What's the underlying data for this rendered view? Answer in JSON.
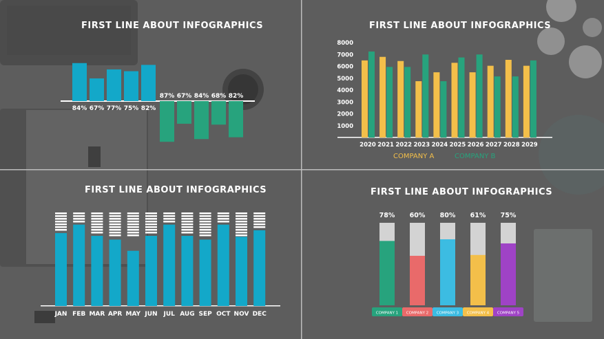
{
  "colors": {
    "background": "#5d5d5d",
    "teal": "#13a8c9",
    "green": "#27a37d",
    "yellow": "#f3bf4a",
    "divider": "#bdbdbd"
  },
  "panels": {
    "top_left": {
      "title": "FIRST LINE ABOUT INFOGRAPHICS"
    },
    "top_right": {
      "title": "FIRST LINE ABOUT INFOGRAPHICS"
    },
    "bottom_left": {
      "title": "FIRST LINE ABOUT INFOGRAPHICS"
    },
    "bottom_right": {
      "title": "FIRST LINE ABOUT INFOGRAPHICS"
    }
  },
  "chart_data": [
    {
      "type": "bar",
      "id": "diverging",
      "title": "FIRST LINE ABOUT INFOGRAPHICS",
      "series": [
        {
          "name": "",
          "direction": "up",
          "color": "#13a8c9",
          "values": [
            84,
            67,
            77,
            75,
            82
          ],
          "labels": [
            "84%",
            "67%",
            "77%",
            "75%",
            "82%"
          ]
        },
        {
          "name": "",
          "direction": "down",
          "color": "#27a37d",
          "values": [
            87,
            67,
            84,
            68,
            82
          ],
          "labels": [
            "87%",
            "67%",
            "84%",
            "68%",
            "82%"
          ]
        }
      ],
      "unit": "%"
    },
    {
      "type": "bar",
      "id": "grouped",
      "title": "FIRST LINE ABOUT INFOGRAPHICS",
      "categories": [
        "2020",
        "2021",
        "2022",
        "2023",
        "2024",
        "2025",
        "2026",
        "2027",
        "2028",
        "2029"
      ],
      "series": [
        {
          "name": "COMPANY A",
          "color": "#f3bf4a",
          "values": [
            6500,
            6800,
            6450,
            4750,
            5500,
            6300,
            5500,
            6050,
            6550,
            6050
          ]
        },
        {
          "name": "COMPANY B",
          "color": "#27a37d",
          "values": [
            7250,
            5950,
            5950,
            7000,
            4750,
            6750,
            7000,
            5150,
            5150,
            6500
          ]
        }
      ],
      "yticks": [
        "1000",
        "2000",
        "3000",
        "4000",
        "5000",
        "6000",
        "7000",
        "8000"
      ],
      "ylim": [
        0,
        8000
      ],
      "legend_position": "bottom"
    },
    {
      "type": "bar",
      "id": "monthly",
      "title": "FIRST LINE ABOUT INFOGRAPHICS",
      "categories": [
        "JAN",
        "FEB",
        "MAR",
        "APR",
        "MAY",
        "JUN",
        "JUL",
        "AUG",
        "SEP",
        "OCT",
        "NOV",
        "DEC"
      ],
      "values": [
        78,
        87,
        75,
        71,
        59,
        75,
        87,
        75,
        71,
        87,
        74,
        81
      ],
      "color": "#13a8c9",
      "ylim": [
        0,
        100
      ]
    },
    {
      "type": "bar",
      "id": "progress",
      "title": "FIRST LINE ABOUT INFOGRAPHICS",
      "categories": [
        "COMPANY 1",
        "COMPANY 2",
        "COMPANY 3",
        "COMPANY 4",
        "COMPANY 5"
      ],
      "values": [
        78,
        60,
        80,
        61,
        75
      ],
      "labels": [
        "78%",
        "60%",
        "80%",
        "61%",
        "75%"
      ],
      "colors": [
        "#27a37d",
        "#e96a6a",
        "#3cbce2",
        "#f3bf4a",
        "#9f43c6"
      ],
      "ylim": [
        0,
        100
      ]
    }
  ]
}
